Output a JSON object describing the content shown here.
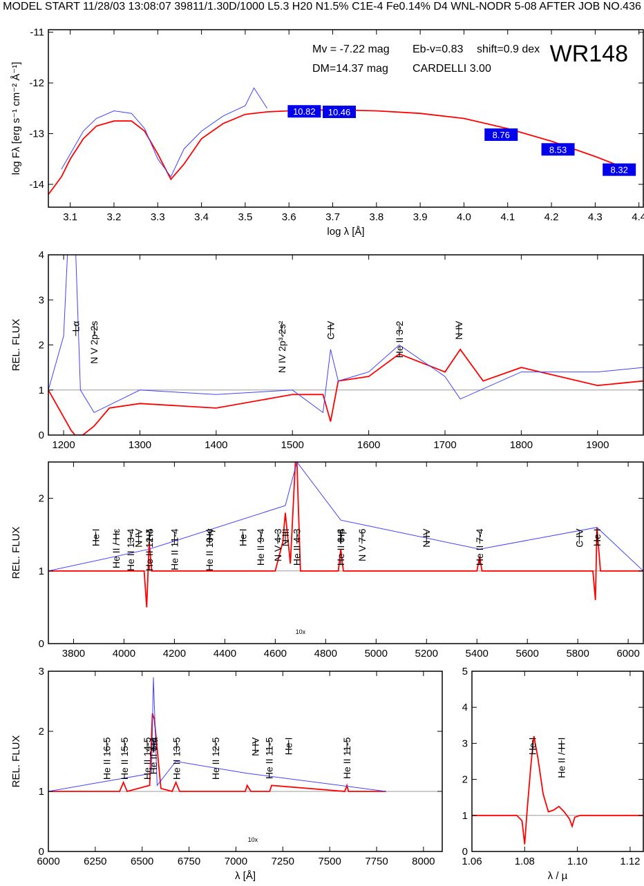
{
  "header": "MODEL START   11/28/03  13:08:07   39811/1.30D/1000 L5.3 H20 N1.5% C1E-4 Fe0.14% D4 WNL-NODR 5-08    AFTER JOB NO.436",
  "colors": {
    "observed": "#4040ff",
    "model": "#ff0000",
    "box": "#0000ee",
    "frame": "#000000",
    "continuum": "#999999"
  },
  "chart_data": [
    {
      "id": "sed",
      "type": "line",
      "title": "WR148",
      "xlabel": "log λ [Å]",
      "ylabel": "log Fλ [erg s⁻¹ cm⁻² Å⁻¹]",
      "xlim": [
        3.05,
        4.41
      ],
      "ylim": [
        -14.45,
        -10.95
      ],
      "xticks": [
        "3.1",
        "3.2",
        "3.3",
        "3.4",
        "3.5",
        "3.6",
        "3.7",
        "3.8",
        "3.9",
        "4.0",
        "4.1",
        "4.2",
        "4.3",
        "4.4"
      ],
      "yticks": [
        "-11",
        "-12",
        "-13",
        "-14"
      ],
      "params": [
        "Mv = -7.22 mag",
        "Eb-v=0.83",
        "shift=0.9 dex",
        "DM=14.37 mag",
        "CARDELLI 3.00"
      ],
      "photometry": [
        {
          "x": 3.635,
          "y": -12.56,
          "label": "10.82"
        },
        {
          "x": 3.715,
          "y": -12.57,
          "label": "10.46"
        },
        {
          "x": 4.085,
          "y": -13.02,
          "label": "8.76"
        },
        {
          "x": 4.215,
          "y": -13.31,
          "label": "8.53"
        },
        {
          "x": 4.355,
          "y": -13.71,
          "label": "8.32"
        }
      ],
      "series": [
        {
          "x": [
            3.05,
            3.08,
            3.1,
            3.13,
            3.16,
            3.2,
            3.24,
            3.27,
            3.3,
            3.33,
            3.36,
            3.4,
            3.45,
            3.5,
            3.55,
            3.6,
            3.7,
            3.8,
            3.9,
            4.0,
            4.1,
            4.2,
            4.3,
            4.36
          ],
          "y": [
            -14.2,
            -13.85,
            -13.5,
            -13.1,
            -12.85,
            -12.75,
            -12.75,
            -12.95,
            -13.4,
            -13.9,
            -13.6,
            -13.1,
            -12.8,
            -12.62,
            -12.57,
            -12.55,
            -12.53,
            -12.55,
            -12.6,
            -12.7,
            -12.9,
            -13.15,
            -13.45,
            -13.65
          ]
        },
        {
          "x": [
            3.08,
            3.1,
            3.13,
            3.16,
            3.2,
            3.24,
            3.27,
            3.3,
            3.33,
            3.36,
            3.4,
            3.45,
            3.5,
            3.52,
            3.55
          ],
          "y": [
            -13.7,
            -13.4,
            -12.95,
            -12.7,
            -12.55,
            -12.6,
            -12.9,
            -13.5,
            -13.85,
            -13.3,
            -12.95,
            -12.65,
            -12.45,
            -12.1,
            -12.5
          ]
        }
      ]
    },
    {
      "id": "uv",
      "type": "line",
      "xlabel": "",
      "ylabel": "REL. FLUX",
      "xlim": [
        1180,
        1960
      ],
      "ylim": [
        0,
        4
      ],
      "xticks": [
        "1200",
        "1300",
        "1400",
        "1500",
        "1600",
        "1700",
        "1800",
        "1900"
      ],
      "yticks": [
        "0",
        "1",
        "2",
        "3",
        "4"
      ],
      "lines": [
        {
          "x": 1216,
          "label": "Lα"
        },
        {
          "x": 1240,
          "label": "N V 2p-2s"
        },
        {
          "x": 1486,
          "label": "N IV 2p³-2s²"
        },
        {
          "x": 1550,
          "label": "C IV"
        },
        {
          "x": 1640,
          "label": "He II 3-2"
        },
        {
          "x": 1718,
          "label": "N IV"
        }
      ],
      "series": [
        {
          "x": [
            1180,
            1200,
            1210,
            1215,
            1225,
            1240,
            1260,
            1300,
            1400,
            1500,
            1540,
            1550,
            1560,
            1600,
            1640,
            1700,
            1720,
            1750,
            1800,
            1900,
            1960
          ],
          "y": [
            1.0,
            0.4,
            0.1,
            0.0,
            0.0,
            0.2,
            0.6,
            0.7,
            0.6,
            0.9,
            0.9,
            0.3,
            1.2,
            1.3,
            1.8,
            1.4,
            1.9,
            1.2,
            1.5,
            1.1,
            1.2
          ]
        },
        {
          "x": [
            1180,
            1200,
            1205,
            1210,
            1216,
            1222,
            1240,
            1300,
            1400,
            1500,
            1540,
            1550,
            1560,
            1600,
            1640,
            1700,
            1720,
            1800,
            1900,
            1960
          ],
          "y": [
            1.0,
            2.2,
            4.0,
            4.0,
            4.0,
            1.0,
            0.5,
            1.0,
            0.9,
            1.0,
            0.5,
            1.9,
            1.2,
            1.4,
            2.0,
            1.3,
            0.8,
            1.4,
            1.4,
            1.5
          ]
        }
      ]
    },
    {
      "id": "optical",
      "type": "line",
      "xlabel": "",
      "ylabel": "REL. FLUX",
      "xlim": [
        3700,
        6060
      ],
      "ylim": [
        0,
        2.5
      ],
      "xticks": [
        "3800",
        "4000",
        "4200",
        "4400",
        "4600",
        "4800",
        "5000",
        "5200",
        "5400",
        "5600",
        "5800",
        "6000"
      ],
      "yticks": [
        "0",
        "1",
        "2"
      ],
      "lines": [
        {
          "x": 3888,
          "label": "He I"
        },
        {
          "x": 3968,
          "label": "He II / Hε"
        },
        {
          "x": 4026,
          "label": "He II 13-4"
        },
        {
          "x": 4058,
          "label": "N IV"
        },
        {
          "x": 4100,
          "label": "He II 12-4"
        },
        {
          "x": 4101,
          "label": "Hδ"
        },
        {
          "x": 4200,
          "label": "He II 11-4"
        },
        {
          "x": 4339,
          "label": "He II 10-4"
        },
        {
          "x": 4340,
          "label": "Hγ"
        },
        {
          "x": 4471,
          "label": "He I"
        },
        {
          "x": 4542,
          "label": "He II 9-4"
        },
        {
          "x": 4610,
          "label": "N V 4-3"
        },
        {
          "x": 4640,
          "label": "N III"
        },
        {
          "x": 4686,
          "label": "He II 4-3"
        },
        {
          "x": 4859,
          "label": "He II 8-4"
        },
        {
          "x": 4861,
          "label": "Hβ"
        },
        {
          "x": 4944,
          "label": "N V 7-6"
        },
        {
          "x": 5200,
          "label": "N IV"
        },
        {
          "x": 5411,
          "label": "He II 7-4"
        },
        {
          "x": 5806,
          "label": "C IV"
        },
        {
          "x": 5876,
          "label": "He I"
        }
      ],
      "inset_label": "10x",
      "series": [
        {
          "x": [
            3700,
            4080,
            4090,
            4100,
            4110,
            4600,
            4630,
            4640,
            4660,
            4680,
            4686,
            4700,
            4850,
            4860,
            4870,
            5400,
            5411,
            5420,
            5860,
            5870,
            5876,
            5890,
            6060
          ],
          "y": [
            1.0,
            1.0,
            0.5,
            1.4,
            1.0,
            1.0,
            1.4,
            1.8,
            1.1,
            2.5,
            2.5,
            1.0,
            1.0,
            1.3,
            1.0,
            1.0,
            1.2,
            1.0,
            1.0,
            0.6,
            1.6,
            1.0,
            1.0
          ]
        },
        {
          "x": [
            3700,
            4100,
            4640,
            4686,
            4860,
            5411,
            5876,
            6060
          ],
          "y": [
            1.0,
            1.3,
            1.9,
            2.5,
            1.7,
            1.3,
            1.6,
            1.0
          ]
        }
      ]
    },
    {
      "id": "red",
      "type": "line",
      "xlabel": "λ [Å]",
      "ylabel": "REL. FLUX",
      "xlim": [
        6000,
        8100
      ],
      "ylim": [
        0,
        3
      ],
      "xticks": [
        "6000",
        "6250",
        "6500",
        "6750",
        "7000",
        "7250",
        "7500",
        "7750",
        "8000"
      ],
      "yticks": [
        "0",
        "1",
        "2",
        "3"
      ],
      "lines": [
        {
          "x": 6311,
          "label": "He II 16-5"
        },
        {
          "x": 6406,
          "label": "He II 15-5"
        },
        {
          "x": 6527,
          "label": "He II 14-5"
        },
        {
          "x": 6560,
          "label": "He II 6-4"
        },
        {
          "x": 6563,
          "label": "Hα"
        },
        {
          "x": 6683,
          "label": "He II 13-5"
        },
        {
          "x": 6891,
          "label": "He II 12-5"
        },
        {
          "x": 7103,
          "label": "N IV"
        },
        {
          "x": 7178,
          "label": "He II 11-5"
        },
        {
          "x": 7281,
          "label": "He I"
        },
        {
          "x": 7592,
          "label": "He II 11-5"
        }
      ],
      "inset_label": "10x",
      "series": [
        {
          "x": [
            6000,
            6380,
            6400,
            6420,
            6540,
            6555,
            6565,
            6600,
            6660,
            6680,
            6700,
            7050,
            7060,
            7080,
            7180,
            7190,
            7580,
            7592,
            7600,
            7800
          ],
          "y": [
            1.0,
            1.0,
            1.15,
            1.0,
            1.1,
            2.3,
            2.2,
            1.05,
            1.0,
            1.15,
            1.0,
            1.0,
            1.1,
            1.0,
            1.0,
            1.1,
            1.0,
            1.1,
            1.0,
            1.0
          ]
        },
        {
          "x": [
            6000,
            6550,
            6560,
            6580,
            6680,
            7060,
            7800
          ],
          "y": [
            1.0,
            1.3,
            2.9,
            1.1,
            1.5,
            1.3,
            1.0
          ]
        }
      ]
    },
    {
      "id": "ir",
      "type": "line",
      "xlabel": "λ / µ",
      "ylabel": "",
      "xlim": [
        1.06,
        1.125
      ],
      "ylim": [
        0,
        5
      ],
      "xticks": [
        "1.06",
        "1.08",
        "1.10",
        "1.12"
      ],
      "yticks": [
        "0",
        "1",
        "2",
        "3",
        "4",
        "5"
      ],
      "lines": [
        {
          "x": 1.083,
          "label": "He I"
        },
        {
          "x": 1.094,
          "label": "He II / H I"
        }
      ],
      "series": [
        {
          "x": [
            1.06,
            1.077,
            1.079,
            1.08,
            1.081,
            1.0825,
            1.0835,
            1.085,
            1.087,
            1.089,
            1.091,
            1.093,
            1.095,
            1.096,
            1.097,
            1.098,
            1.099,
            1.101,
            1.125
          ],
          "y": [
            1.0,
            1.0,
            0.85,
            0.2,
            1.2,
            2.5,
            3.2,
            2.6,
            1.6,
            1.1,
            1.15,
            1.25,
            1.1,
            1.0,
            0.9,
            0.7,
            0.95,
            1.0,
            1.0
          ]
        }
      ]
    }
  ]
}
